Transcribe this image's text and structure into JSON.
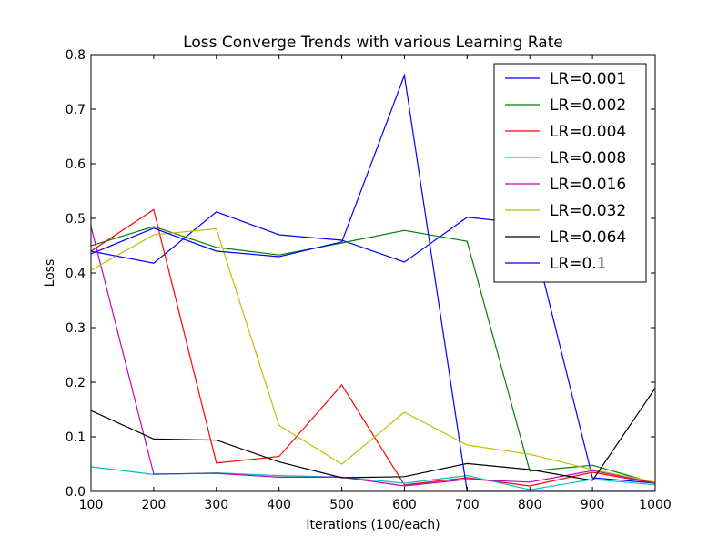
{
  "chart_data": {
    "type": "line",
    "title": "Loss Converge Trends with various Learning Rate",
    "xlabel": "Iterations (100/each)",
    "ylabel": "Loss",
    "xlim": [
      100,
      1000
    ],
    "ylim": [
      0,
      0.8
    ],
    "xticks": [
      "100",
      "200",
      "300",
      "400",
      "500",
      "600",
      "700",
      "800",
      "900",
      "1000"
    ],
    "yticks": [
      "0.0",
      "0.1",
      "0.2",
      "0.3",
      "0.4",
      "0.5",
      "0.6",
      "0.7",
      "0.8"
    ],
    "x": [
      100,
      200,
      300,
      400,
      500,
      600,
      700,
      800,
      900,
      1000
    ],
    "grid": false,
    "legend_position": "top-right",
    "series": [
      {
        "name": "LR=0.001",
        "color": "#0000ff",
        "values": [
          0.44,
          0.418,
          0.512,
          0.47,
          0.46,
          0.42,
          0.502,
          0.49,
          0.025,
          0.015
        ]
      },
      {
        "name": "LR=0.002",
        "color": "#008000",
        "values": [
          0.45,
          0.485,
          0.447,
          0.433,
          0.455,
          0.478,
          0.458,
          0.037,
          0.048,
          0.015
        ]
      },
      {
        "name": "LR=0.004",
        "color": "#ff0000",
        "values": [
          0.44,
          0.516,
          0.052,
          0.064,
          0.195,
          0.012,
          0.025,
          0.01,
          0.035,
          0.015
        ]
      },
      {
        "name": "LR=0.008",
        "color": "#00bfbf",
        "values": [
          0.045,
          0.031,
          0.034,
          0.029,
          0.026,
          0.015,
          0.029,
          0.003,
          0.022,
          0.012
        ]
      },
      {
        "name": "LR=0.016",
        "color": "#bf00bf",
        "values": [
          0.485,
          0.032,
          0.033,
          0.026,
          0.026,
          0.01,
          0.022,
          0.017,
          0.038,
          0.016
        ]
      },
      {
        "name": "LR=0.032",
        "color": "#bfbf00",
        "values": [
          0.405,
          0.47,
          0.481,
          0.121,
          0.05,
          0.145,
          0.085,
          0.068,
          0.04,
          0.017
        ]
      },
      {
        "name": "LR=0.064",
        "color": "#000000",
        "values": [
          0.148,
          0.096,
          0.094,
          0.054,
          0.025,
          0.027,
          0.051,
          0.04,
          0.02,
          0.189
        ]
      },
      {
        "name": "LR=0.1",
        "color": "#0000ff",
        "values": [
          0.435,
          0.482,
          0.44,
          0.43,
          0.457,
          0.762,
          0.0,
          0.0,
          0.0,
          0.0
        ]
      }
    ]
  }
}
